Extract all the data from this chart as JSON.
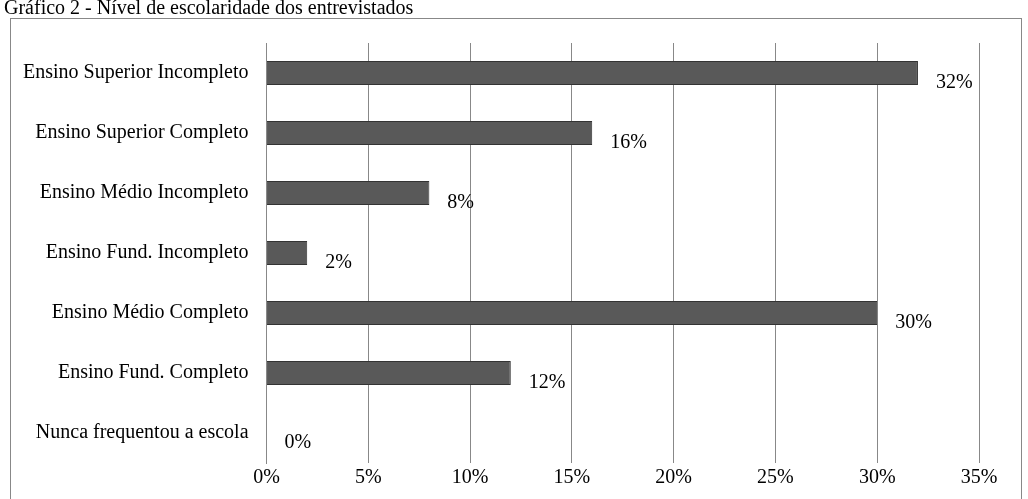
{
  "chart_data": {
    "type": "bar",
    "orientation": "horizontal",
    "title": "Gráfico 2 - Nível de escolaridade dos entrevistados",
    "categories": [
      "Ensino Superior Incompleto",
      "Ensino Superior Completo",
      "Ensino Médio Incompleto",
      "Ensino Fund. Incompleto",
      "Ensino Médio Completo",
      "Ensino Fund. Completo",
      "Nunca frequentou a escola"
    ],
    "values": [
      32,
      16,
      8,
      2,
      30,
      12,
      0
    ],
    "color": "#595959",
    "value_labels": [
      "32%",
      "16%",
      "8%",
      "2%",
      "30%",
      "12%",
      "0%"
    ],
    "xlim": [
      0,
      35
    ],
    "xticks": [
      {
        "value": 0,
        "label": "0%"
      },
      {
        "value": 5,
        "label": "5%"
      },
      {
        "value": 10,
        "label": "10%"
      },
      {
        "value": 15,
        "label": "15%"
      },
      {
        "value": 20,
        "label": "20%"
      },
      {
        "value": 25,
        "label": "25%"
      },
      {
        "value": 30,
        "label": "30%"
      },
      {
        "value": 35,
        "label": "35%"
      }
    ],
    "grid": "x"
  }
}
